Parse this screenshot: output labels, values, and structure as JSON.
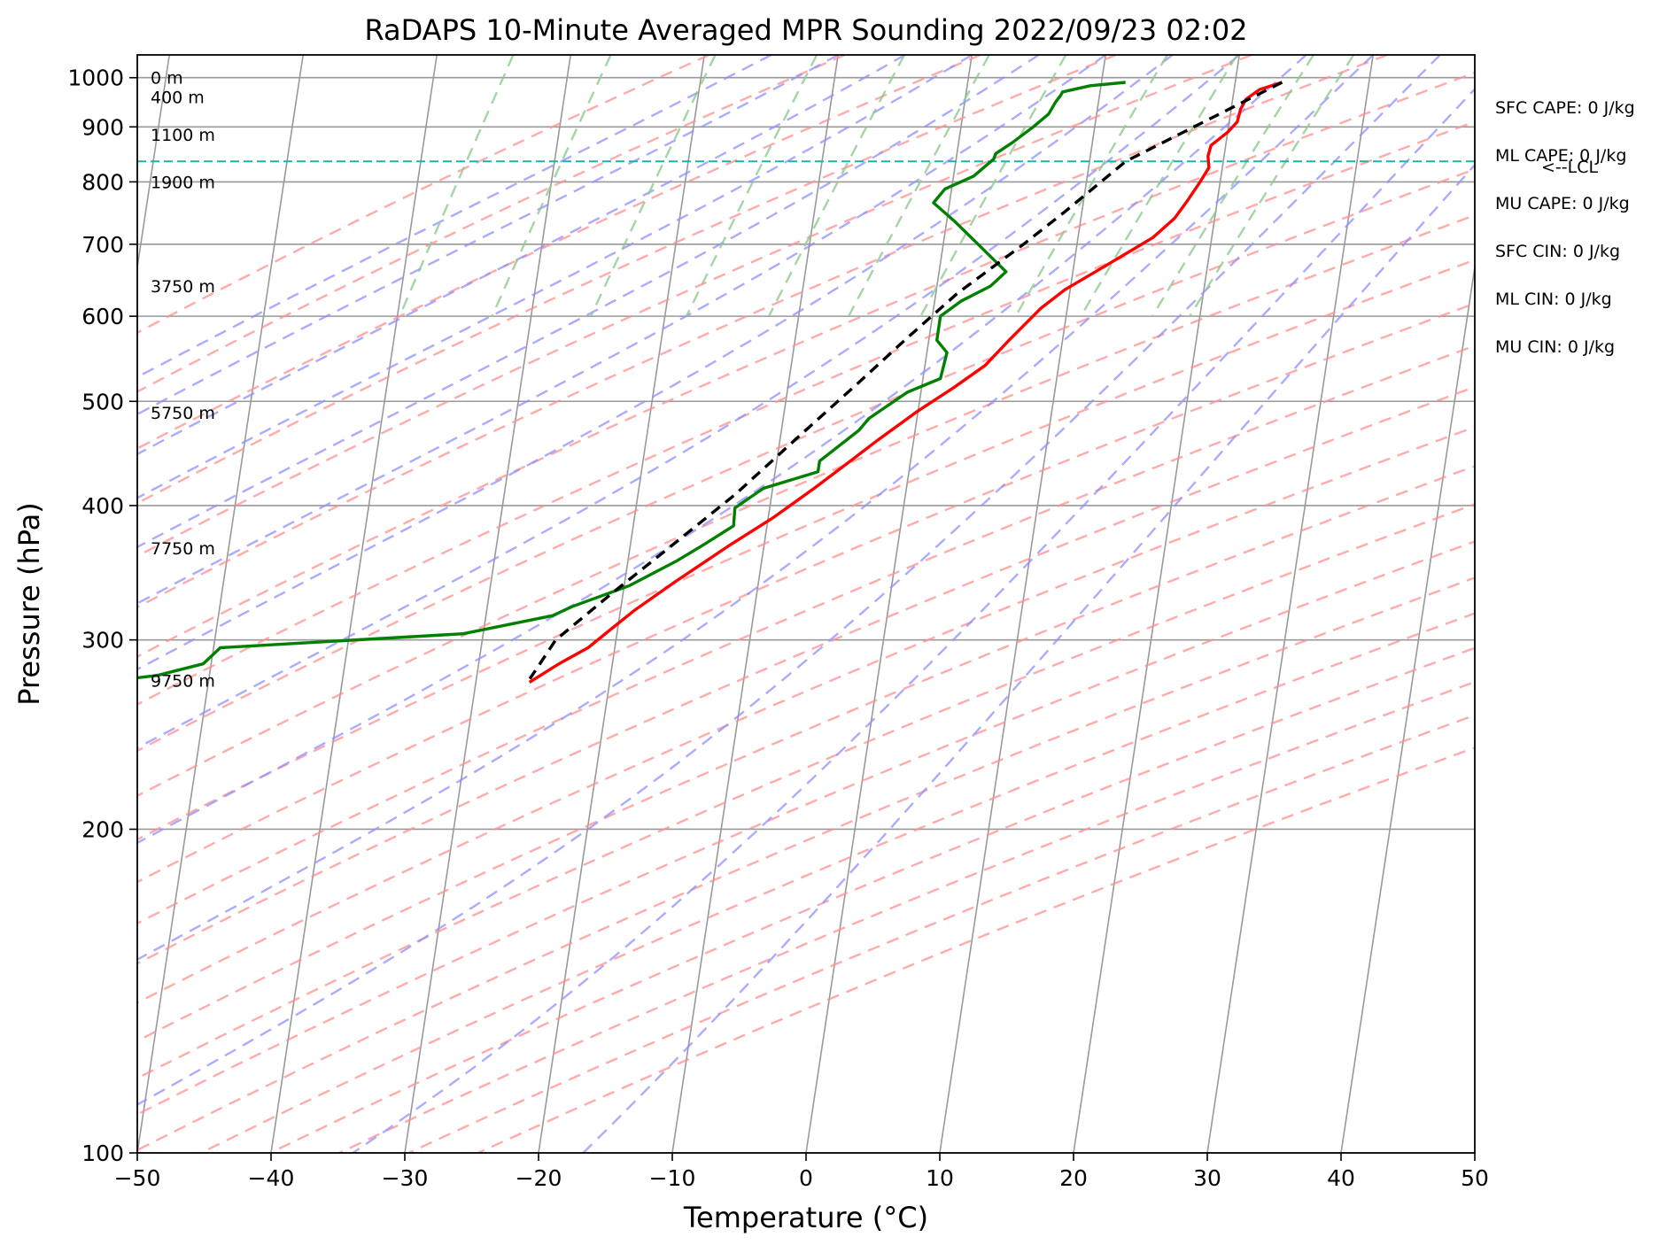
{
  "chart_data": {
    "type": "line",
    "title": "RaDAPS 10-Minute Averaged MPR Sounding 2022/09/23 02:02",
    "xlabel": "Temperature (°C)",
    "ylabel": "Pressure (hPa)",
    "xlim": [
      -50,
      50
    ],
    "ylim": [
      1050,
      100
    ],
    "y_scale": "log",
    "grid": true,
    "x_ticks": [
      -50,
      -40,
      -30,
      -20,
      -10,
      0,
      10,
      20,
      30,
      40,
      50
    ],
    "x_tick_labels": [
      "−50",
      "−40",
      "−30",
      "−20",
      "−10",
      "0",
      "10",
      "20",
      "30",
      "40",
      "50"
    ],
    "y_ticks": [
      1000,
      900,
      800,
      700,
      600,
      500,
      400,
      300,
      200,
      100
    ],
    "y_tick_labels": [
      "1000",
      "900",
      "800",
      "700",
      "600",
      "500",
      "400",
      "300",
      "200",
      "100"
    ],
    "annotations": [
      {
        "text": "SFC CAPE: 0 J/kg"
      },
      {
        "text": "ML CAPE: 0 J/kg"
      },
      {
        "text": "MU CAPE: 0 J/kg"
      },
      {
        "text": "SFC CIN: 0 J/kg"
      },
      {
        "text": "ML CIN: 0 J/kg"
      },
      {
        "text": "MU CIN: 0 J/kg"
      }
    ],
    "lcl": {
      "pressure": 836,
      "label": "<--LCL"
    },
    "height_labels": [
      {
        "text": "9750 m",
        "pressure": 275
      },
      {
        "text": "7750 m",
        "pressure": 365
      },
      {
        "text": "5750 m",
        "pressure": 488
      },
      {
        "text": "3750 m",
        "pressure": 640
      },
      {
        "text": "1900 m",
        "pressure": 800
      },
      {
        "text": "1100 m",
        "pressure": 885
      },
      {
        "text": "400 m",
        "pressure": 960
      },
      {
        "text": "0 m",
        "pressure": 1000
      }
    ],
    "series": [
      {
        "role": "temperature",
        "color": "#ff0000",
        "points": [
          [
            23.5,
            990
          ],
          [
            21.9,
            975
          ],
          [
            21.0,
            955
          ],
          [
            20.7,
            935
          ],
          [
            20.6,
            910
          ],
          [
            20.0,
            890
          ],
          [
            18.9,
            865
          ],
          [
            18.8,
            845
          ],
          [
            19.0,
            825
          ],
          [
            18.5,
            800
          ],
          [
            17.8,
            770
          ],
          [
            17.0,
            740
          ],
          [
            15.6,
            710
          ],
          [
            12.5,
            670
          ],
          [
            9.6,
            635
          ],
          [
            8.0,
            610
          ],
          [
            6.0,
            570
          ],
          [
            4.5,
            540
          ],
          [
            2.4,
            515
          ],
          [
            0.0,
            490
          ],
          [
            -2.7,
            460
          ],
          [
            -4.5,
            440
          ],
          [
            -6.9,
            415
          ],
          [
            -9.6,
            390
          ],
          [
            -12.5,
            368
          ],
          [
            -16.2,
            340
          ],
          [
            -18.9,
            320
          ],
          [
            -20.5,
            307
          ],
          [
            -22.0,
            295
          ],
          [
            -24.0,
            285
          ],
          [
            -26.0,
            274
          ]
        ]
      },
      {
        "role": "dewpoint",
        "color": "#008000",
        "points": [
          [
            11.8,
            990
          ],
          [
            9.2,
            983
          ],
          [
            7.2,
            970
          ],
          [
            7.1,
            963
          ],
          [
            6.8,
            950
          ],
          [
            6.4,
            925
          ],
          [
            5.4,
            900
          ],
          [
            4.0,
            870
          ],
          [
            2.9,
            850
          ],
          [
            2.8,
            840
          ],
          [
            1.5,
            810
          ],
          [
            -0.5,
            788
          ],
          [
            -1.2,
            765
          ],
          [
            0.6,
            735
          ],
          [
            2.6,
            700
          ],
          [
            5.0,
            660
          ],
          [
            4.0,
            640
          ],
          [
            2.0,
            620
          ],
          [
            0.6,
            600
          ],
          [
            0.6,
            570
          ],
          [
            1.5,
            555
          ],
          [
            1.3,
            525
          ],
          [
            -1.0,
            510
          ],
          [
            -3.6,
            482
          ],
          [
            -4.2,
            470
          ],
          [
            -6.8,
            440
          ],
          [
            -6.8,
            430
          ],
          [
            -10.7,
            415
          ],
          [
            -12.6,
            398
          ],
          [
            -12.5,
            383
          ],
          [
            -14.5,
            368
          ],
          [
            -16.4,
            355
          ],
          [
            -19.6,
            337
          ],
          [
            -23.7,
            322
          ],
          [
            -25.0,
            316
          ],
          [
            -31.5,
            304
          ],
          [
            -49.5,
            295
          ],
          [
            -50.6,
            285
          ],
          [
            -53.9,
            278
          ],
          [
            -62.5,
            270
          ]
        ]
      },
      {
        "role": "parcel",
        "color": "#000000",
        "dashed": true,
        "points": [
          [
            23.5,
            990
          ],
          [
            12.7,
            836
          ],
          [
            8.7,
            750
          ],
          [
            6.0,
            700
          ],
          [
            1.6,
            630
          ],
          [
            -1.8,
            570
          ],
          [
            -4.8,
            520
          ],
          [
            -8.9,
            460
          ],
          [
            -12.7,
            410
          ],
          [
            -16.6,
            370
          ],
          [
            -21.0,
            330
          ],
          [
            -24.5,
            300
          ],
          [
            -26.0,
            276
          ]
        ]
      }
    ],
    "background_lines": {
      "isotherms": [
        -140,
        -130,
        -120,
        -110,
        -100,
        -90,
        -80,
        -70,
        -60,
        -50,
        -40,
        -30,
        -20,
        -10,
        0,
        10,
        20,
        30,
        40,
        50
      ],
      "dry_adiabats_theta_K": [
        250,
        260,
        270,
        280,
        290,
        300,
        310,
        320,
        330,
        340,
        350,
        360,
        370,
        380,
        390,
        400,
        410,
        420,
        430,
        440,
        450,
        460,
        470,
        480
      ],
      "moist_adiabats_C": [
        -15,
        -10,
        -5,
        0,
        5,
        10,
        15,
        20,
        25,
        30,
        35,
        40,
        45
      ],
      "mixing_ratio_gkg": [
        0.2,
        0.4,
        0.8,
        1.5,
        2.5,
        4,
        6,
        10,
        14,
        20,
        24
      ],
      "colors": {
        "grid": "#999999",
        "isotherm": "#999999",
        "dry": "#ff8f8f",
        "moist": "#8f8fff",
        "mixing": "#8fc98f",
        "lcl": "#19b3b3"
      }
    }
  }
}
